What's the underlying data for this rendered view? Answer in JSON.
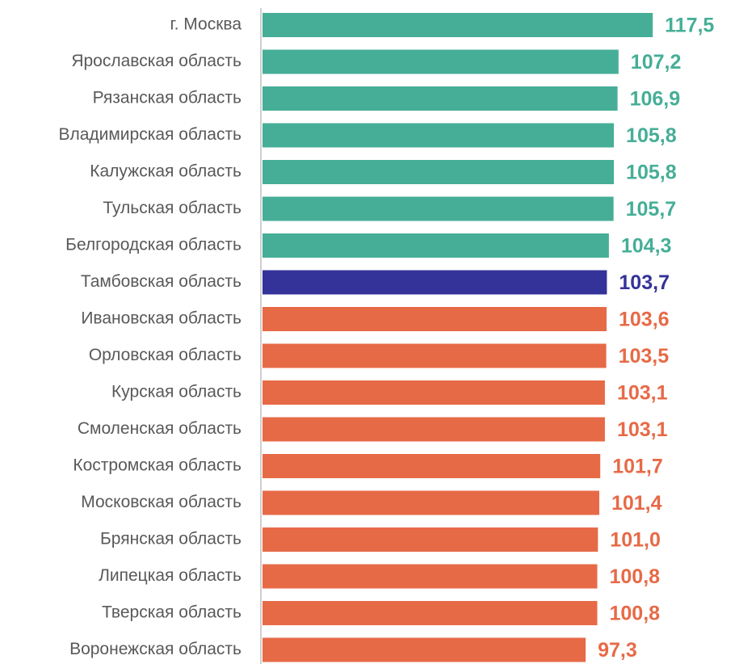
{
  "chart_data": {
    "type": "hbar",
    "categories": [
      "г. Москва",
      "Ярославская область",
      "Рязанская область",
      "Владимирская область",
      "Калужская область",
      "Тульская область",
      "Белгородская область",
      "Тамбовская область",
      "Ивановская область",
      "Орловская область",
      "Курская область",
      "Смоленская область",
      "Костромская область",
      "Московская область",
      "Брянская область",
      "Липецкая область",
      "Тверская область",
      "Воронежская область"
    ],
    "values": [
      117.5,
      107.2,
      106.9,
      105.8,
      105.8,
      105.7,
      104.3,
      103.7,
      103.6,
      103.5,
      103.1,
      103.1,
      101.7,
      101.4,
      101.0,
      100.8,
      100.8,
      97.3
    ],
    "value_labels": [
      "117,5",
      "107,2",
      "106,9",
      "105,8",
      "105,8",
      "105,7",
      "104,3",
      "103,7",
      "103,6",
      "103,5",
      "103,1",
      "103,1",
      "101,7",
      "101,4",
      "101,0",
      "100,8",
      "100,8",
      "97,3"
    ],
    "colors": [
      "#46ae97",
      "#46ae97",
      "#46ae97",
      "#46ae97",
      "#46ae97",
      "#46ae97",
      "#46ae97",
      "#343399",
      "#e76a47",
      "#e76a47",
      "#e76a47",
      "#e76a47",
      "#e76a47",
      "#e76a47",
      "#e76a47",
      "#e76a47",
      "#e76a47",
      "#e76a47"
    ],
    "xlim": [
      0,
      125
    ]
  }
}
